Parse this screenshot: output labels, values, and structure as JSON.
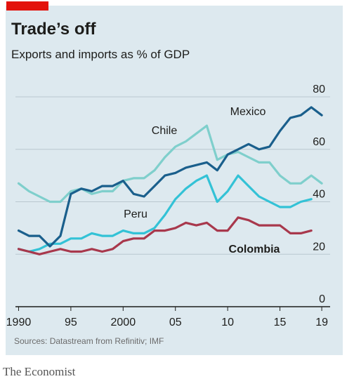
{
  "header": {
    "title": "Trade’s off",
    "subtitle": "Exports and imports as % of GDP"
  },
  "footer": {
    "source": "Sources: Datastream from Refinitiv; IMF",
    "brand": "The Economist"
  },
  "colors": {
    "background": "#dde9ef",
    "accent": "#e3120b",
    "mexico": "#1a5f8c",
    "chile": "#7fcfcc",
    "peru": "#33c2d6",
    "colombia": "#a8384c"
  },
  "chart_data": {
    "type": "line",
    "title": "Trade’s off",
    "subtitle": "Exports and imports as % of GDP",
    "xlabel": "",
    "ylabel": "",
    "xlim": [
      1989.7,
      2019.8
    ],
    "ylim": [
      0,
      80
    ],
    "yticks": [
      0,
      20,
      40,
      60,
      80
    ],
    "y_tick_labels": [
      "0",
      "20",
      "40",
      "60",
      "80"
    ],
    "xticks": [
      1990,
      1995,
      2000,
      2005,
      2010,
      2015,
      2019
    ],
    "x_tick_labels": [
      "1990",
      "95",
      "2000",
      "05",
      "10",
      "15",
      "19"
    ],
    "grid": true,
    "legend": "inline labels",
    "x": [
      1990,
      1991,
      1992,
      1993,
      1994,
      1995,
      1996,
      1997,
      1998,
      1999,
      2000,
      2001,
      2002,
      2003,
      2004,
      2005,
      2006,
      2007,
      2008,
      2009,
      2010,
      2011,
      2012,
      2013,
      2014,
      2015,
      2016,
      2017,
      2018,
      2019
    ],
    "series": [
      {
        "name": "Mexico",
        "values": [
          29,
          27,
          27,
          23,
          27,
          43,
          45,
          44,
          46,
          46,
          48,
          43,
          42,
          46,
          50,
          51,
          53,
          54,
          55,
          52,
          58,
          60,
          62,
          60,
          61,
          67,
          72,
          73,
          76,
          73
        ]
      },
      {
        "name": "Chile",
        "values": [
          47,
          44,
          42,
          40,
          40,
          44,
          45,
          43,
          44,
          44,
          48,
          49,
          49,
          52,
          57,
          61,
          63,
          66,
          69,
          56,
          58,
          59,
          57,
          55,
          55,
          50,
          47,
          47,
          50,
          47
        ]
      },
      {
        "name": "Peru",
        "values": [
          22,
          21,
          22,
          24,
          24,
          26,
          26,
          28,
          27,
          27,
          29,
          28,
          28,
          30,
          35,
          41,
          45,
          48,
          50,
          40,
          44,
          50,
          46,
          42,
          40,
          38,
          38,
          40,
          41,
          null
        ]
      },
      {
        "name": "Colombia",
        "values": [
          22,
          21,
          20,
          21,
          22,
          21,
          21,
          22,
          21,
          22,
          25,
          26,
          26,
          29,
          29,
          30,
          32,
          31,
          32,
          29,
          29,
          34,
          33,
          31,
          31,
          31,
          28,
          28,
          29,
          null
        ]
      }
    ]
  }
}
